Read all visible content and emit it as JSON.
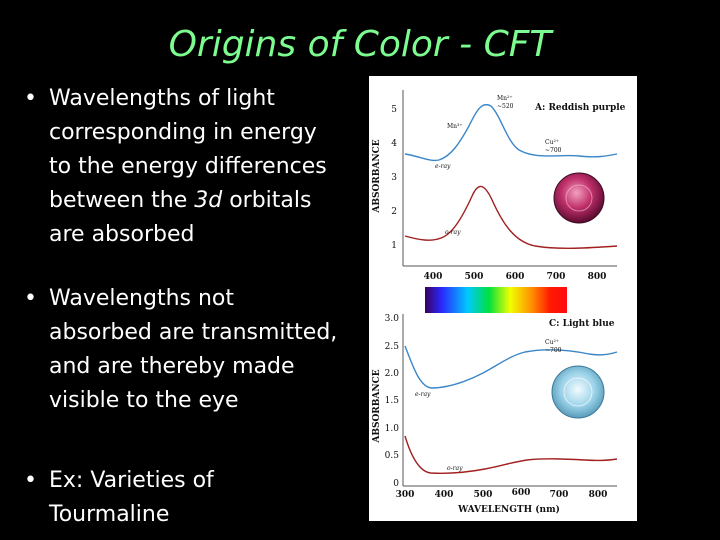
{
  "slide": {
    "title": "Origins of Color - CFT",
    "bullets": [
      {
        "lines": [
          [
            {
              "t": "Wavelengths of  light"
            }
          ],
          [
            {
              "t": "corresponding in energy"
            }
          ],
          [
            {
              "t": "to the energy differences"
            }
          ],
          [
            {
              "t": "between the "
            },
            {
              "t": "3d",
              "i": true
            },
            {
              "t": " orbitals"
            }
          ],
          [
            {
              "t": "are absorbed"
            }
          ]
        ]
      },
      {
        "lines": [
          [
            {
              "t": "Wavelengths not"
            }
          ],
          [
            {
              "t": "absorbed are transmitted,"
            }
          ],
          [
            {
              "t": "and are thereby made"
            }
          ],
          [
            {
              "t": "visible to the eye"
            }
          ]
        ]
      },
      {
        "lines": [
          [
            {
              "t": "Ex: Varieties of"
            }
          ],
          [
            {
              "t": "Tourmaline"
            }
          ]
        ]
      }
    ],
    "bullet_symbol": "•"
  },
  "figure": {
    "panel_a": {
      "label": "A: Reddish purple",
      "ylabel": "ABSORBANCE",
      "yticks": [
        "5",
        "4",
        "3",
        "2",
        "1"
      ],
      "xticks": [
        "400",
        "500",
        "600",
        "700",
        "800"
      ],
      "annotations": {
        "mn2": "Mn²⁺",
        "mn2_val": "~520",
        "mn3": "Mn³⁺",
        "cu2": "Cu²⁺",
        "cu2_val": "~700",
        "eray": "e-ray",
        "oray": "o-ray"
      }
    },
    "panel_c": {
      "label": "C: Light blue",
      "ylabel": "ABSORBANCE",
      "yticks": [
        "3.0",
        "2.5",
        "2.0",
        "1.5",
        "1.0",
        "0.5",
        "0"
      ],
      "xticks": [
        "300",
        "400",
        "500",
        "600",
        "700",
        "800"
      ],
      "xlabel": "WAVELENGTH (nm)",
      "annotations": {
        "cu2": "Cu²⁺",
        "cu2_val": "~700",
        "eray": "e-ray",
        "oray": "o-ray"
      }
    },
    "colors": {
      "blue_curve": "#3a86c8",
      "red_curve": "#a22020",
      "gem_a": "#c0306a",
      "gem_c": "#9ad2e8"
    }
  }
}
